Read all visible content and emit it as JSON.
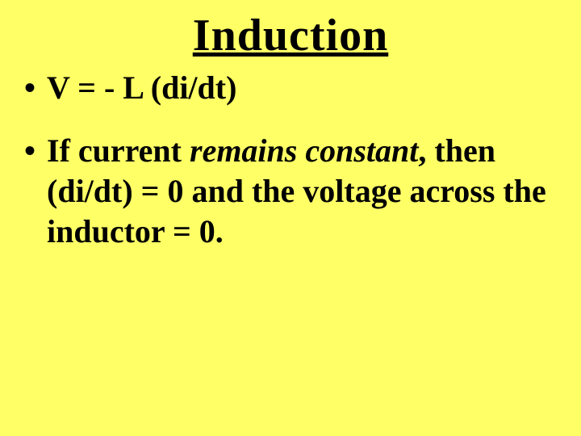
{
  "slide": {
    "title": "Induction",
    "background_color": "#ffff66",
    "text_color": "#000000",
    "title_fontsize": 56,
    "body_fontsize": 40,
    "font_family": "Times New Roman",
    "bullets": [
      {
        "pre": "V = - L (di/dt)",
        "italic": "",
        "post": ""
      },
      {
        "pre": "If current ",
        "italic": "remains constant",
        "post": ", then (di/dt) = 0 and the voltage across the inductor = 0."
      }
    ]
  }
}
